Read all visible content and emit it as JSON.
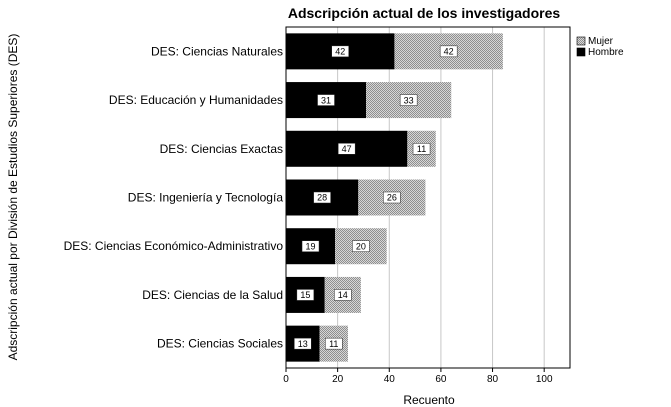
{
  "chart_data": {
    "type": "bar",
    "orientation": "horizontal",
    "stacked": true,
    "title": "Adscripción actual de los investigadores",
    "xlabel": "Recuento",
    "ylabel": "Adscripción actual por División de Estudios Superiores (DES)",
    "xlim": [
      0,
      110
    ],
    "xticks": [
      0,
      20,
      40,
      60,
      80,
      100
    ],
    "grid": "vertical",
    "legend_position": "top-right",
    "categories": [
      "DES: Ciencias Naturales",
      "DES: Educación y Humanidades",
      "DES: Ciencias Exactas",
      "DES: Ingeniería y Tecnología",
      "DES: Ciencias Económico-Administrativo",
      "DES: Ciencias de la Salud",
      "DES: Ciencias Sociales"
    ],
    "series": [
      {
        "name": "Hombre",
        "color": "#000000",
        "values": [
          42,
          31,
          47,
          28,
          19,
          15,
          13
        ]
      },
      {
        "name": "Mujer",
        "color": "#b4b4b4",
        "values": [
          42,
          33,
          11,
          26,
          20,
          14,
          11
        ]
      }
    ],
    "legend_order": [
      "Mujer",
      "Hombre"
    ]
  }
}
